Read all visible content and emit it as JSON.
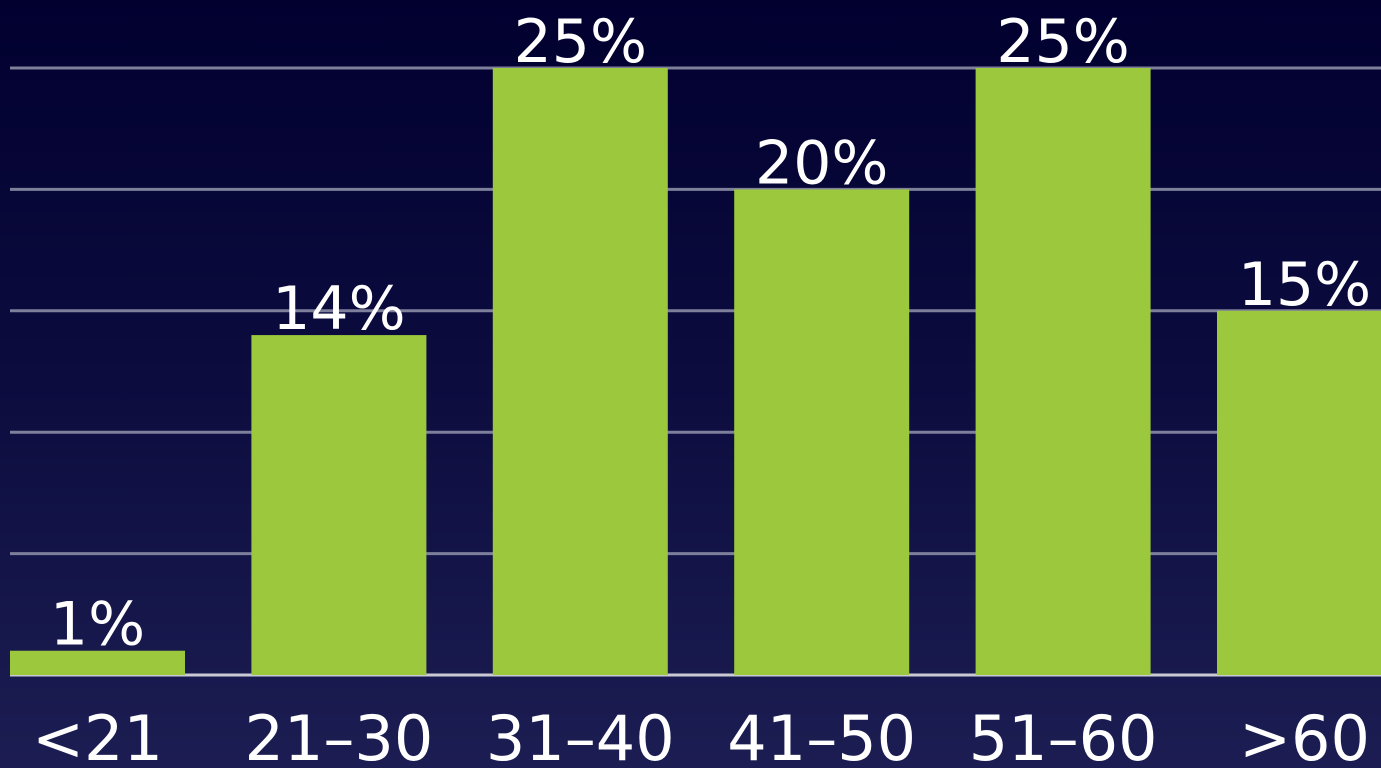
{
  "chart_data": {
    "type": "bar",
    "categories": [
      "<21",
      "21–30",
      "31–40",
      "41–50",
      "51–60",
      ">60"
    ],
    "values": [
      1,
      14,
      25,
      20,
      25,
      15
    ],
    "value_labels": [
      "1%",
      "14%",
      "25%",
      "20%",
      "25%",
      "15%"
    ],
    "ylim": [
      0,
      25
    ],
    "grid": true,
    "bar_color": "#9bc83c",
    "background_color": "#010133",
    "text_color": "#ffffff",
    "gridline_color": "#7d7f9b"
  }
}
